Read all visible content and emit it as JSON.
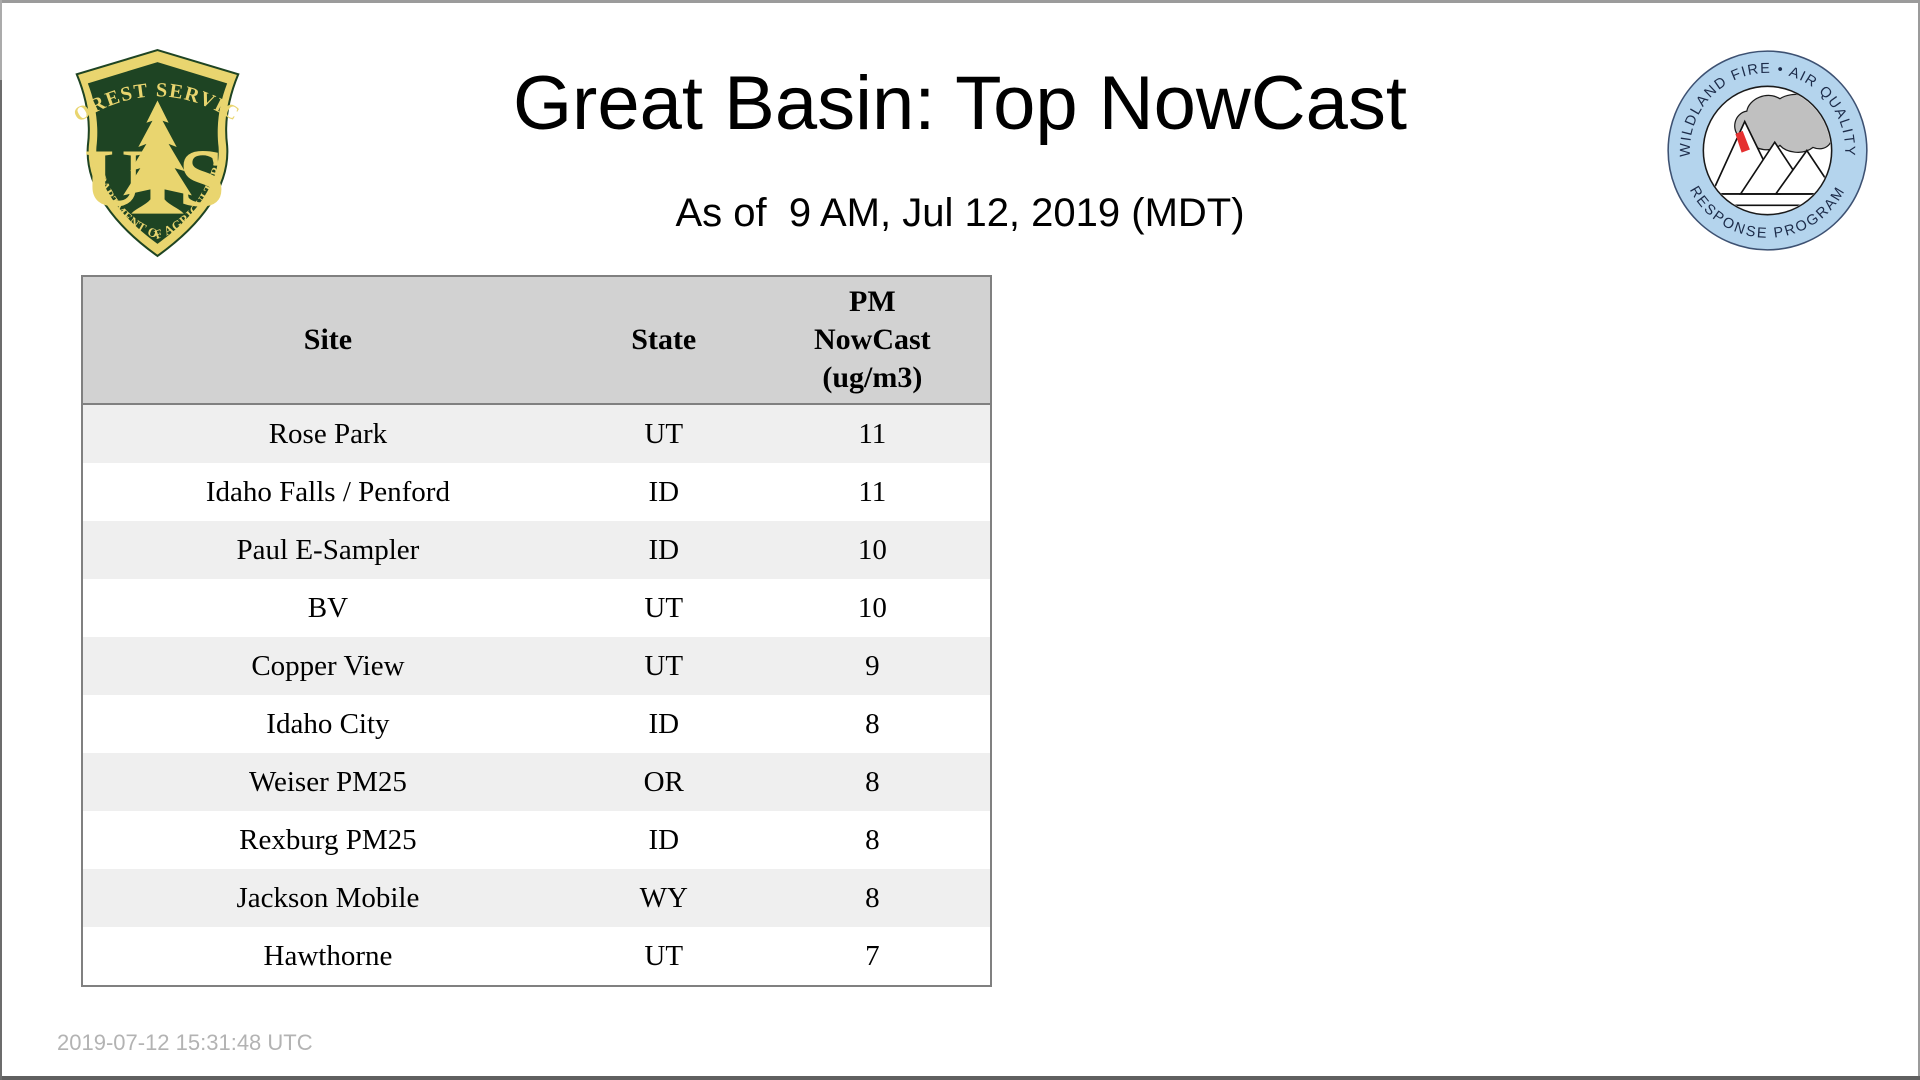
{
  "page": {
    "title": "Great Basin: Top NowCast",
    "subtitle": "As of  9 AM, Jul 12, 2019 (MDT)",
    "generated_at": "2019-07-12 15:31:48 UTC"
  },
  "logos": {
    "forest_service": {
      "arc_top": "FOREST SERVICE",
      "monogram_left": "U",
      "monogram_right": "S",
      "arc_bottom": "DEPARTMENT OF AGRICULTURE",
      "green": "#1e4423",
      "gold": "#e9d56f"
    },
    "air_quality_program": {
      "arc_top": "WILDLAND FIRE • AIR QUALITY",
      "arc_bottom": "RESPONSE PROGRAM",
      "ring_blue": "#b4d4ed",
      "smoke_gray": "#c0c0c0",
      "flame_red": "#e53030",
      "text_navy": "#1c2b49"
    }
  },
  "table": {
    "columns": [
      {
        "label": "Site"
      },
      {
        "label": "State"
      },
      {
        "label": "PM\nNowCast\n(ug/m3)"
      }
    ],
    "rows": [
      {
        "site": "Rose Park",
        "state": "UT",
        "nowcast": 11
      },
      {
        "site": "Idaho Falls / Penford",
        "state": "ID",
        "nowcast": 11
      },
      {
        "site": "Paul E-Sampler",
        "state": "ID",
        "nowcast": 10
      },
      {
        "site": "BV",
        "state": "UT",
        "nowcast": 10
      },
      {
        "site": "Copper View",
        "state": "UT",
        "nowcast": 9
      },
      {
        "site": "Idaho City",
        "state": "ID",
        "nowcast": 8
      },
      {
        "site": "Weiser PM25",
        "state": "OR",
        "nowcast": 8
      },
      {
        "site": "Rexburg PM25",
        "state": "ID",
        "nowcast": 8
      },
      {
        "site": "Jackson Mobile",
        "state": "WY",
        "nowcast": 8
      },
      {
        "site": "Hawthorne",
        "state": "UT",
        "nowcast": 7
      }
    ],
    "style": {
      "header_bg": "#d2d2d2",
      "stripe_bg": "#efefef",
      "row_bg": "#ffffff",
      "border": "#808080"
    }
  },
  "chart_data": {
    "type": "table",
    "title": "Great Basin: Top NowCast",
    "subtitle": "As of  9 AM, Jul 12, 2019 (MDT)",
    "columns": [
      "Site",
      "State",
      "PM NowCast (ug/m3)"
    ],
    "rows": [
      [
        "Rose Park",
        "UT",
        11
      ],
      [
        "Idaho Falls / Penford",
        "ID",
        11
      ],
      [
        "Paul E-Sampler",
        "ID",
        10
      ],
      [
        "BV",
        "UT",
        10
      ],
      [
        "Copper View",
        "UT",
        9
      ],
      [
        "Idaho City",
        "ID",
        8
      ],
      [
        "Weiser PM25",
        "OR",
        8
      ],
      [
        "Rexburg PM25",
        "ID",
        8
      ],
      [
        "Jackson Mobile",
        "WY",
        8
      ],
      [
        "Hawthorne",
        "UT",
        7
      ]
    ]
  }
}
